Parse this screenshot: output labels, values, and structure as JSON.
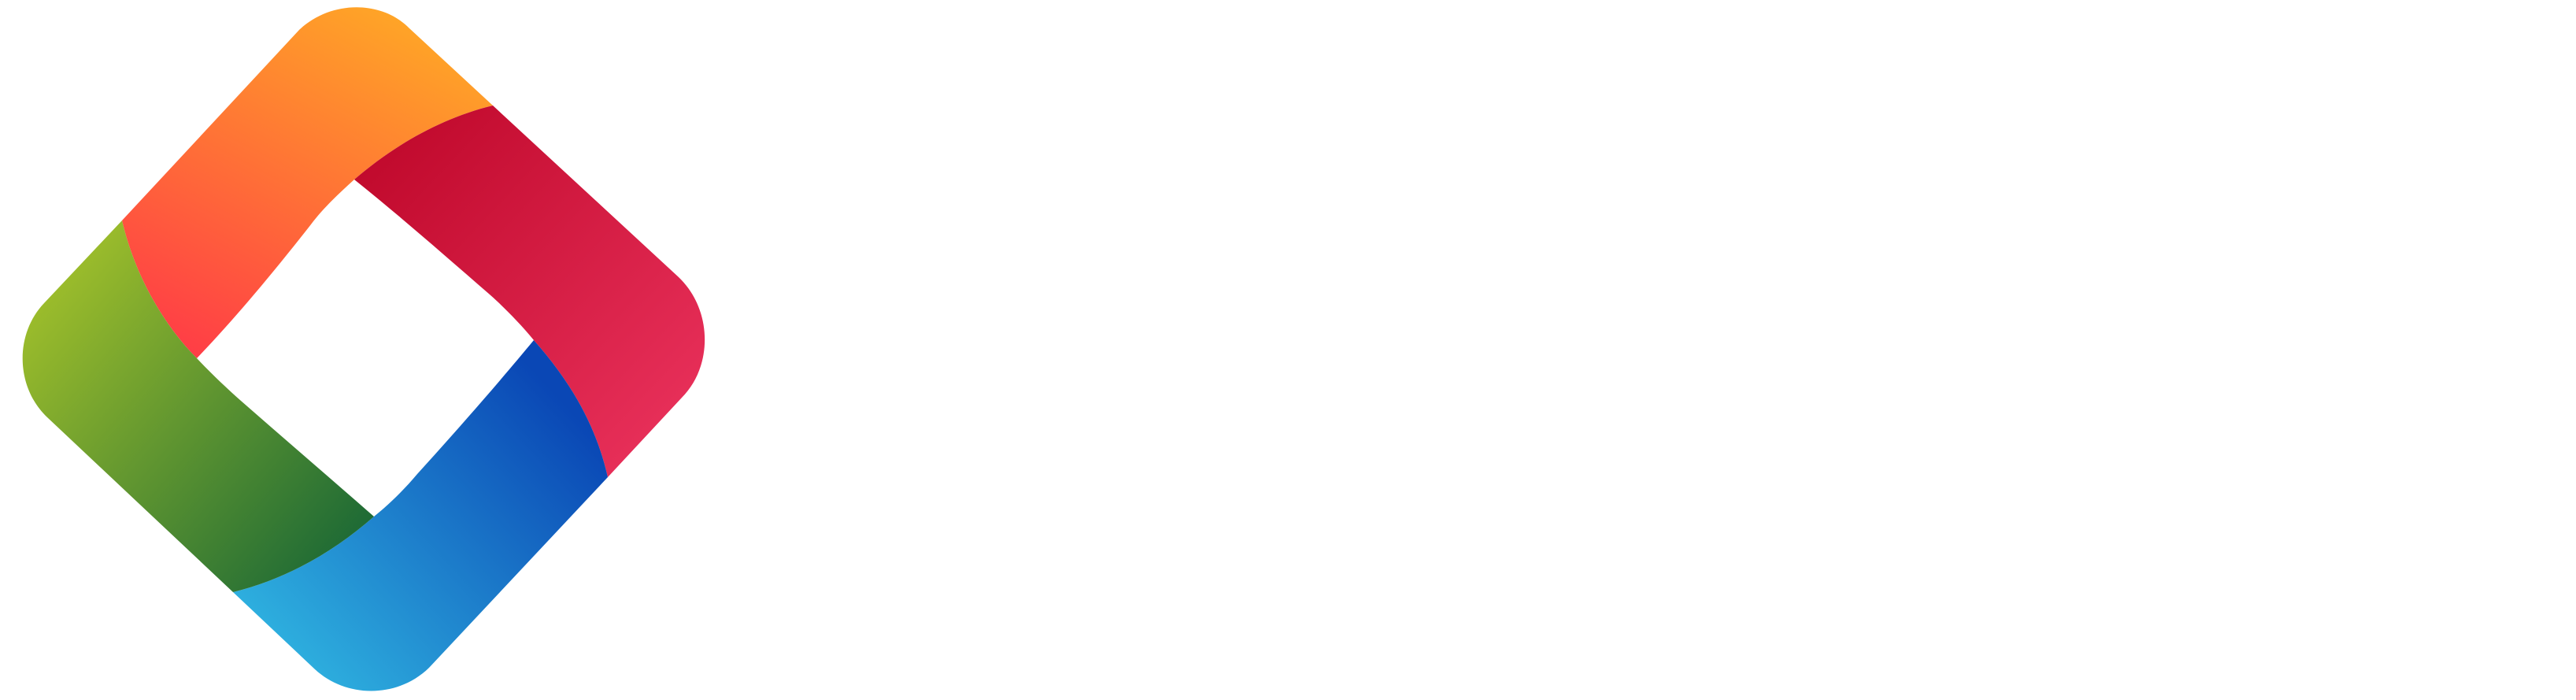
{
  "logo": {
    "icon": "four-color-diamond-logo-icon",
    "colors": {
      "top_orange_start": "#ffa726",
      "top_orange_end": "#ff3d46",
      "right_red_start": "#c10a2d",
      "right_red_end": "#e8305a",
      "bottom_blue_start": "#2fb3e0",
      "bottom_blue_end": "#0a47b5",
      "left_green_start": "#a9c52a",
      "left_green_end": "#1f6b35"
    }
  },
  "background": "#ffffff"
}
